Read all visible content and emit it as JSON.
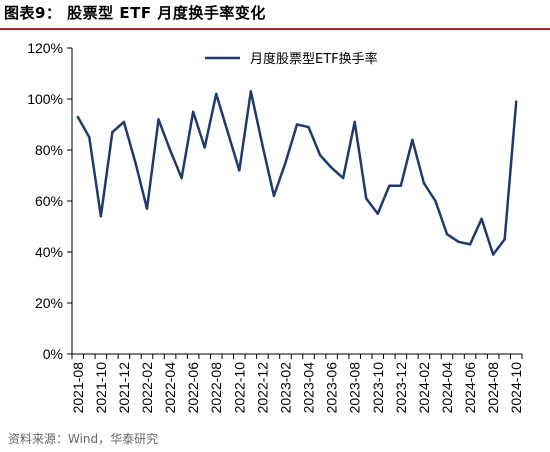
{
  "header": {
    "title": "图表9：  股票型 ETF 月度换手率变化"
  },
  "footer": {
    "source": "资料来源：Wind，华泰研究"
  },
  "colors": {
    "series": "#1f3a6e",
    "title_rule": "#b3262b"
  },
  "chart_data": {
    "type": "line",
    "title": "图表9：  股票型 ETF 月度换手率变化",
    "xlabel": "",
    "ylabel": "",
    "ylim": [
      0,
      120
    ],
    "y_ticks": [
      "0%",
      "20%",
      "40%",
      "60%",
      "80%",
      "100%",
      "120%"
    ],
    "x_tick_labels": [
      "2021-08",
      "2021-10",
      "2021-12",
      "2022-02",
      "2022-04",
      "2022-06",
      "2022-08",
      "2022-10",
      "2022-12",
      "2023-02",
      "2023-04",
      "2023-06",
      "2023-08",
      "2023-10",
      "2023-12",
      "2024-02",
      "2024-04",
      "2024-06",
      "2024-08",
      "2024-10"
    ],
    "grid": false,
    "legend_position": "top-center",
    "categories": [
      "2021-08",
      "2021-09",
      "2021-10",
      "2021-11",
      "2021-12",
      "2022-01",
      "2022-02",
      "2022-03",
      "2022-04",
      "2022-05",
      "2022-06",
      "2022-07",
      "2022-08",
      "2022-09",
      "2022-10",
      "2022-11",
      "2022-12",
      "2023-01",
      "2023-02",
      "2023-03",
      "2023-04",
      "2023-05",
      "2023-06",
      "2023-07",
      "2023-08",
      "2023-09",
      "2023-10",
      "2023-11",
      "2023-12",
      "2024-01",
      "2024-02",
      "2024-03",
      "2024-04",
      "2024-05",
      "2024-06",
      "2024-07",
      "2024-08",
      "2024-09",
      "2024-10"
    ],
    "series": [
      {
        "name": "月度股票型ETF换手率",
        "values": [
          93,
          85,
          54,
          87,
          91,
          75,
          57,
          92,
          80,
          69,
          95,
          81,
          102,
          87,
          72,
          103,
          82,
          62,
          75,
          90,
          89,
          78,
          73,
          69,
          91,
          61,
          55,
          66,
          66,
          84,
          67,
          60,
          47,
          44,
          43,
          53,
          39,
          45,
          99
        ]
      }
    ]
  }
}
